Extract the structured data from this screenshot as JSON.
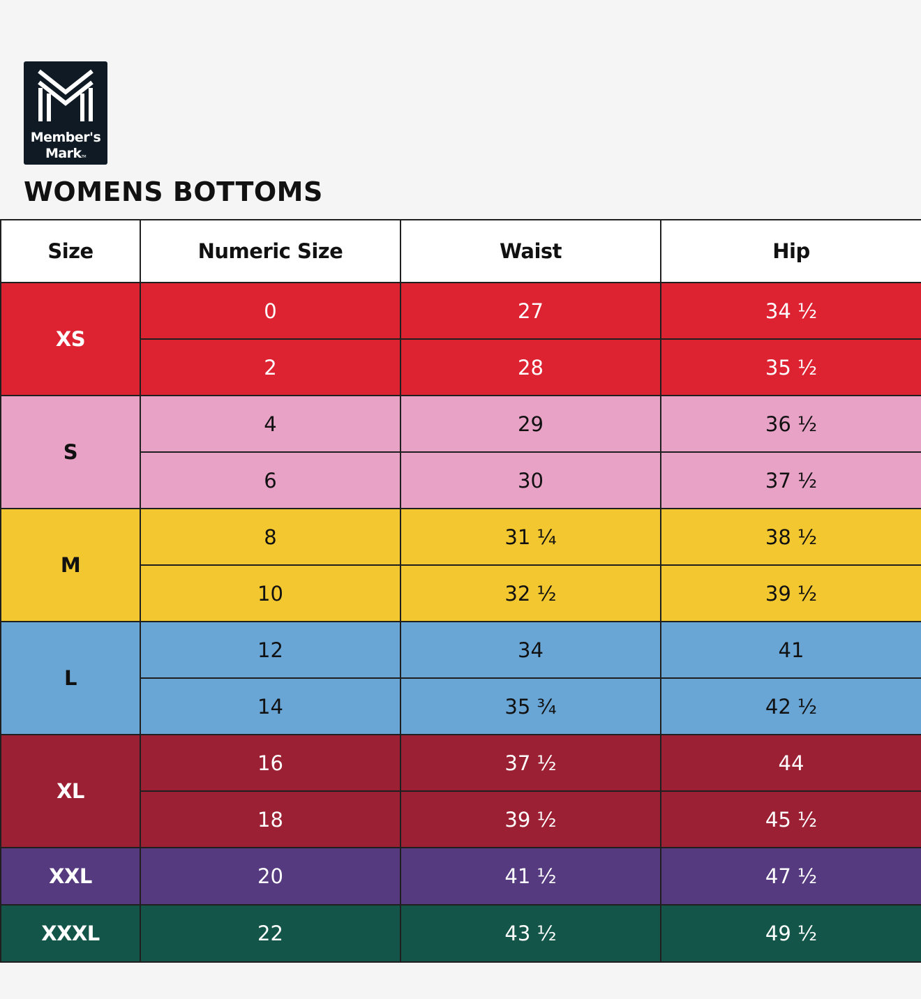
{
  "brand": {
    "line1": "Member's",
    "line2": "Mark",
    "tm": "TM",
    "logo_icon": "m-monogram-icon",
    "logo_bg": "#0f1a24"
  },
  "title": "WOMENS BOTTOMS",
  "headers": [
    "Size",
    "Numeric Size",
    "Waist",
    "Hip"
  ],
  "groups": [
    {
      "size": "XS",
      "bg": "#dd2331",
      "fg": "#ffffff",
      "rows": [
        {
          "numeric": "0",
          "waist": "27",
          "hip": "34 ½"
        },
        {
          "numeric": "2",
          "waist": "28",
          "hip": "35 ½"
        }
      ]
    },
    {
      "size": "S",
      "bg": "#e7a2c6",
      "fg": "#111111",
      "rows": [
        {
          "numeric": "4",
          "waist": "29",
          "hip": "36 ½"
        },
        {
          "numeric": "6",
          "waist": "30",
          "hip": "37 ½"
        }
      ]
    },
    {
      "size": "M",
      "bg": "#f3c72f",
      "fg": "#111111",
      "rows": [
        {
          "numeric": "8",
          "waist": "31 ¼",
          "hip": "38 ½"
        },
        {
          "numeric": "10",
          "waist": "32 ½",
          "hip": "39 ½"
        }
      ]
    },
    {
      "size": "L",
      "bg": "#69a6d6",
      "fg": "#111111",
      "rows": [
        {
          "numeric": "12",
          "waist": "34",
          "hip": "41"
        },
        {
          "numeric": "14",
          "waist": "35 ¾",
          "hip": "42 ½"
        }
      ]
    },
    {
      "size": "XL",
      "bg": "#9b2033",
      "fg": "#ffffff",
      "rows": [
        {
          "numeric": "16",
          "waist": "37 ½",
          "hip": "44"
        },
        {
          "numeric": "18",
          "waist": "39 ½",
          "hip": "45 ½"
        }
      ]
    },
    {
      "size": "XXL",
      "bg": "#553a80",
      "fg": "#ffffff",
      "rows": [
        {
          "numeric": "20",
          "waist": "41 ½",
          "hip": "47 ½"
        }
      ]
    },
    {
      "size": "XXXL",
      "bg": "#14554a",
      "fg": "#ffffff",
      "rows": [
        {
          "numeric": "22",
          "waist": "43 ½",
          "hip": "49 ½"
        }
      ]
    }
  ]
}
